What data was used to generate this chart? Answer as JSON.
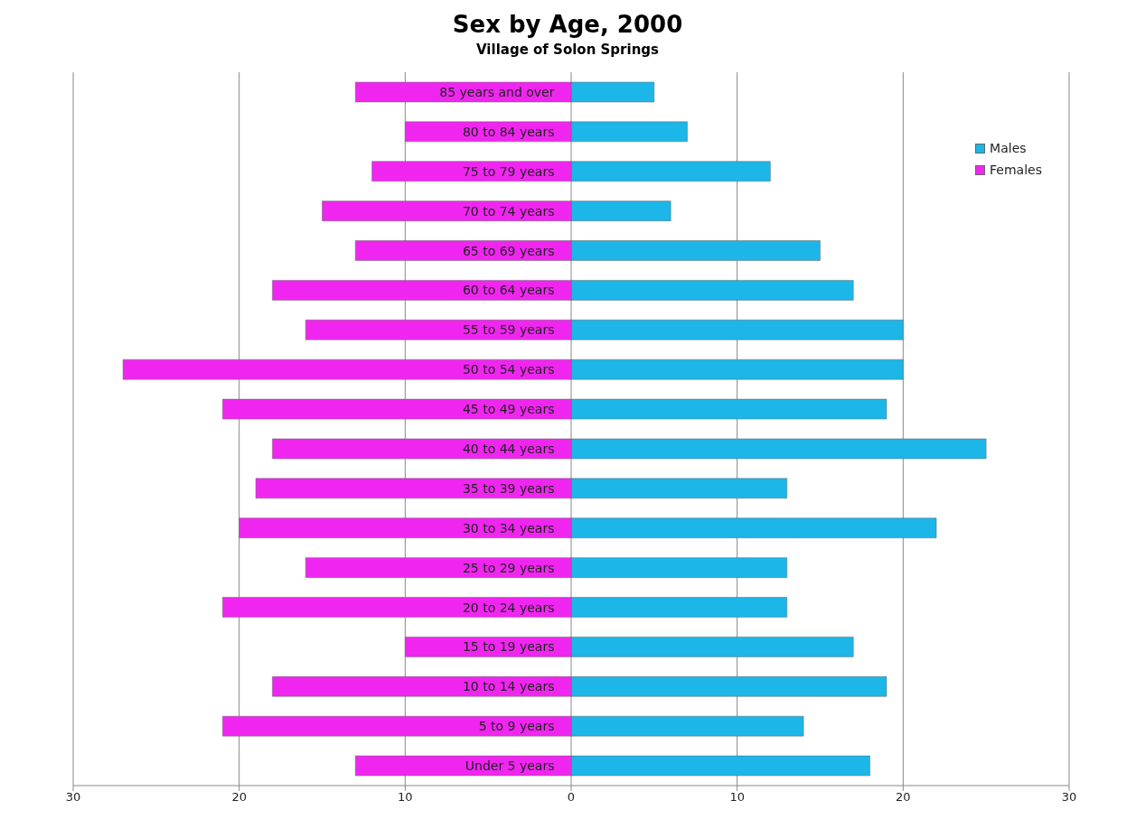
{
  "chart_data": {
    "type": "bar",
    "title": "Sex by Age, 2000",
    "subtitle": "Village of Solon Springs",
    "orientation": "horizontal",
    "stacked": true,
    "categories": [
      "85 years and over",
      "80 to 84 years",
      "75 to 79 years",
      "70 to 74 years",
      "65 to 69 years",
      "60 to 64 years",
      "55 to 59 years",
      "50 to 54 years",
      "45 to 49 years",
      "40 to 44 years",
      "35 to 39 years",
      "30 to 34 years",
      "25 to 29 years",
      "20 to 24 years",
      "15 to 19 years",
      "10 to 14 years",
      "5 to 9 years",
      "Under 5 years"
    ],
    "series": [
      {
        "name": "Males",
        "color": "#1cb6e8",
        "values": [
          5,
          7,
          12,
          6,
          15,
          17,
          20,
          20,
          19,
          25,
          13,
          22,
          13,
          13,
          17,
          19,
          14,
          18
        ]
      },
      {
        "name": "Females",
        "color": "#f026f0",
        "values": [
          -13,
          -10,
          -12,
          -15,
          -13,
          -18,
          -16,
          -27,
          -21,
          -18,
          -19,
          -20,
          -16,
          -21,
          -10,
          -18,
          -21,
          -13
        ]
      }
    ],
    "xlim": [
      -30,
      30
    ],
    "xticks": [
      {
        "value": -30,
        "label": "30"
      },
      {
        "value": -20,
        "label": "20"
      },
      {
        "value": -10,
        "label": "10"
      },
      0,
      10,
      20,
      30
    ],
    "grid": "x",
    "legend": "top right"
  }
}
